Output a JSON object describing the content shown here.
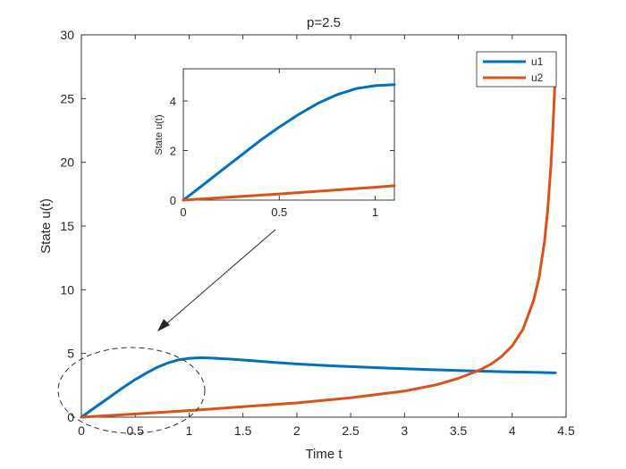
{
  "chart_data": {
    "type": "line",
    "title": "p=2.5",
    "xlabel": "Time t",
    "ylabel": "State u(t)",
    "xlim": [
      0,
      4.5
    ],
    "ylim": [
      0,
      30
    ],
    "xticks": [
      "0",
      "0.5",
      "1",
      "1.5",
      "2",
      "2.5",
      "3",
      "3.5",
      "4",
      "4.5"
    ],
    "yticks": [
      "0",
      "5",
      "10",
      "15",
      "20",
      "25",
      "30"
    ],
    "grid": false,
    "legend": "top-right",
    "series": [
      {
        "name": "u1",
        "color": "#0072BD",
        "x": [
          0,
          0.1,
          0.2,
          0.3,
          0.4,
          0.5,
          0.6,
          0.7,
          0.8,
          0.9,
          1.0,
          1.1,
          1.2,
          1.4,
          1.6,
          1.8,
          2.0,
          2.2,
          2.5,
          2.8,
          3.0,
          3.2,
          3.5,
          3.8,
          4.0,
          4.2,
          4.4
        ],
        "y": [
          0,
          0.6,
          1.2,
          1.8,
          2.4,
          2.95,
          3.45,
          3.9,
          4.25,
          4.5,
          4.62,
          4.66,
          4.64,
          4.55,
          4.42,
          4.3,
          4.18,
          4.08,
          3.97,
          3.86,
          3.8,
          3.74,
          3.66,
          3.59,
          3.55,
          3.52,
          3.48
        ]
      },
      {
        "name": "u2",
        "color": "#D95319",
        "x": [
          0,
          0.5,
          1.0,
          1.5,
          2.0,
          2.5,
          3.0,
          3.3,
          3.5,
          3.7,
          3.8,
          3.9,
          4.0,
          4.1,
          4.2,
          4.25,
          4.3,
          4.33,
          4.36,
          4.38,
          4.4
        ],
        "y": [
          0,
          0.25,
          0.52,
          0.82,
          1.12,
          1.52,
          2.05,
          2.55,
          3.05,
          3.7,
          4.15,
          4.75,
          5.6,
          6.9,
          9.2,
          11.0,
          13.8,
          16.3,
          19.8,
          23.0,
          27.0
        ]
      }
    ],
    "inset": {
      "xlim": [
        0,
        1.1
      ],
      "ylim": [
        0,
        5.3
      ],
      "xticks": [
        "0",
        "0.5",
        "1"
      ],
      "yticks": [
        "0",
        "2",
        "4"
      ],
      "ylabel": "State u(t)"
    }
  }
}
